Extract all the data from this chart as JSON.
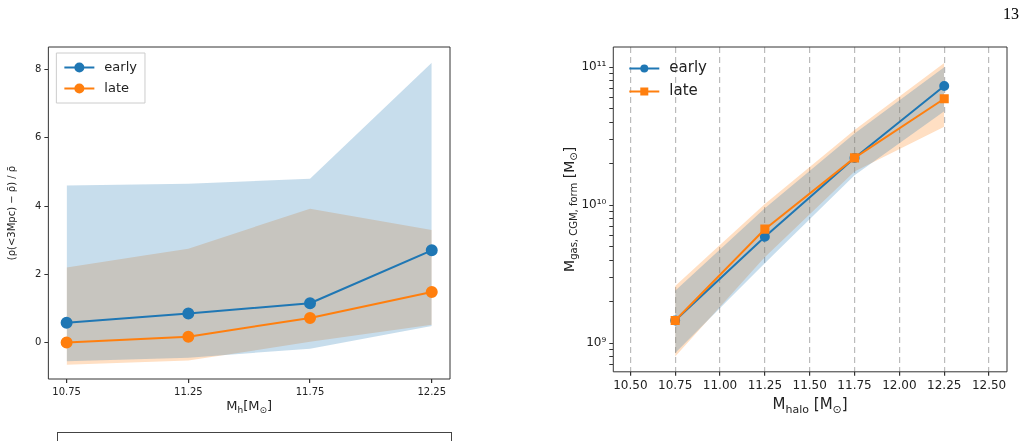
{
  "chart_data": [
    {
      "type": "line",
      "xlabel": "M$_{h}$[M$_{⊙}$]",
      "ylabel": "(ρ(<3Mpc) − ρ̄) / ρ̄",
      "xlim": [
        10.675,
        12.325
      ],
      "xticks": [
        10.75,
        11.25,
        11.75,
        12.25
      ],
      "ylim": [
        -1.07,
        8.66
      ],
      "yticks": [
        0,
        2,
        4,
        6,
        8
      ],
      "x": [
        10.75,
        11.25,
        11.75,
        12.25
      ],
      "legend": "top left",
      "marker": "circle",
      "line_style": "solid",
      "series": [
        {
          "name": "early",
          "color": "#1f77b4",
          "values": [
            0.58,
            0.85,
            1.15,
            2.7
          ],
          "lower": [
            -0.55,
            -0.45,
            -0.18,
            0.48
          ],
          "upper": [
            4.6,
            4.65,
            4.8,
            8.2
          ]
        },
        {
          "name": "late",
          "color": "#ff7f0e",
          "values": [
            0,
            0.17,
            0.72,
            1.48
          ],
          "lower": [
            -0.65,
            -0.53,
            0.02,
            0.52
          ],
          "upper": [
            2.2,
            2.75,
            3.92,
            3.3
          ]
        }
      ]
    },
    {
      "type": "line",
      "xlabel": "M$_{halo}$ [M$_{⊙}$]",
      "ylabel": "M$_{gas, CGM, form}$ [M$_{⊙}$]",
      "annotations": [
        "13"
      ],
      "xlim": [
        10.405,
        12.6
      ],
      "xticks": [
        {
          "value": 10.5,
          "label": "10.50"
        },
        10.75,
        {
          "value": 11,
          "label": "11.00"
        },
        11.25,
        {
          "value": 11.5,
          "label": "11.50"
        },
        11.75,
        {
          "value": 12,
          "label": "12.00"
        },
        12.25,
        {
          "value": 12.5,
          "label": "12.50"
        }
      ],
      "ylim": [
        620000000,
        140000000000
      ],
      "log": true,
      "grid": "x",
      "legend": "top left",
      "line_style": "solid",
      "yticks": [
        {
          "value": 700000000,
          "label": null
        },
        {
          "value": 800000000,
          "label": null
        },
        {
          "value": 900000000,
          "label": null
        },
        {
          "value": 1000000000,
          "label": "10⁹"
        },
        {
          "value": 2000000000,
          "label": null
        },
        {
          "value": 3000000000,
          "label": null
        },
        {
          "value": 4000000000,
          "label": null
        },
        {
          "value": 5000000000,
          "label": null
        },
        {
          "value": 6000000000,
          "label": null
        },
        {
          "value": 7000000000,
          "label": null
        },
        {
          "value": 8000000000,
          "label": null
        },
        {
          "value": 9000000000,
          "label": null
        },
        {
          "value": 10000000000,
          "label": "10¹⁰"
        },
        {
          "value": 20000000000,
          "label": null
        },
        {
          "value": 30000000000,
          "label": null
        },
        {
          "value": 40000000000,
          "label": null
        },
        {
          "value": 50000000000,
          "label": null
        },
        {
          "value": 60000000000,
          "label": null
        },
        {
          "value": 70000000000,
          "label": null
        },
        {
          "value": 80000000000,
          "label": null
        },
        {
          "value": 90000000000,
          "label": null
        },
        {
          "value": 100000000000,
          "label": "10¹¹"
        }
      ],
      "x": [
        10.75,
        11.25,
        11.75,
        12.25
      ],
      "series": [
        {
          "name": "early",
          "color": "#1f77b4",
          "marker": "circle",
          "values": [
            1460000000,
            5900000000,
            22000000000,
            73000000000
          ],
          "lower": [
            850000000,
            3800000000,
            16500000000,
            48000000000
          ],
          "upper": [
            2400000000,
            9500000000,
            33000000000,
            100000000000
          ]
        },
        {
          "name": "late",
          "color": "#ff7f0e",
          "marker": "square",
          "values": [
            1460000000,
            6700000000,
            22000000000,
            59000000000
          ],
          "lower": [
            800000000,
            4200000000,
            17500000000,
            37000000000
          ],
          "upper": [
            2600000000,
            10200000000,
            35000000000,
            107000000000
          ]
        }
      ]
    }
  ]
}
